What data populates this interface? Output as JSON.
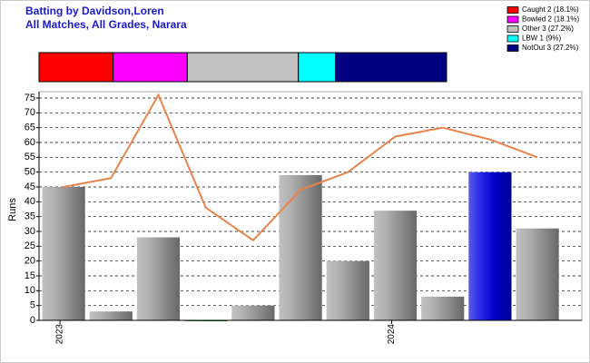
{
  "chart_data": [
    {
      "type": "stacked-bar",
      "legend": "top-right",
      "series": [
        {
          "name": "Caught 2 (18.1%)",
          "color": "#ff0000",
          "values": [
            2
          ]
        },
        {
          "name": "Bowled 2 (18.1%)",
          "color": "#ff00ff",
          "values": [
            2
          ]
        },
        {
          "name": "Other 3 (27.2%)",
          "color": "#c0c0c0",
          "values": [
            3
          ]
        },
        {
          "name": "LBW 1 (9%)",
          "color": "#00ffff",
          "values": [
            1
          ]
        },
        {
          "name": "NotOut 3 (27.2%)",
          "color": "#000080",
          "values": [
            3
          ]
        }
      ]
    },
    {
      "type": "bar",
      "title": "Batting by Davidson,Loren",
      "subtitle": "All Matches, All Grades, Narara",
      "ylabel": "Runs",
      "categories": [
        "2023",
        null,
        null,
        null,
        null,
        null,
        null,
        "2024",
        null,
        null,
        null
      ],
      "values": [
        45,
        3,
        28,
        0,
        5,
        49,
        20,
        37,
        8,
        50,
        31
      ],
      "colors": [
        "#a0a0a0",
        "#a0a0a0",
        "#a0a0a0",
        "#008000",
        "#a0a0a0",
        "#a0a0a0",
        "#a0a0a0",
        "#a0a0a0",
        "#a0a0a0",
        "#0000e0",
        "#a0a0a0"
      ],
      "line_values": [
        45,
        48,
        76,
        38,
        27,
        44,
        50,
        62,
        65,
        61,
        55
      ],
      "line_color": "#e8834a",
      "ylim": [
        0,
        75
      ],
      "yticks": [
        0,
        5,
        10,
        15,
        20,
        25,
        30,
        35,
        40,
        45,
        50,
        55,
        60,
        65,
        70,
        75
      ],
      "grid": true
    }
  ]
}
